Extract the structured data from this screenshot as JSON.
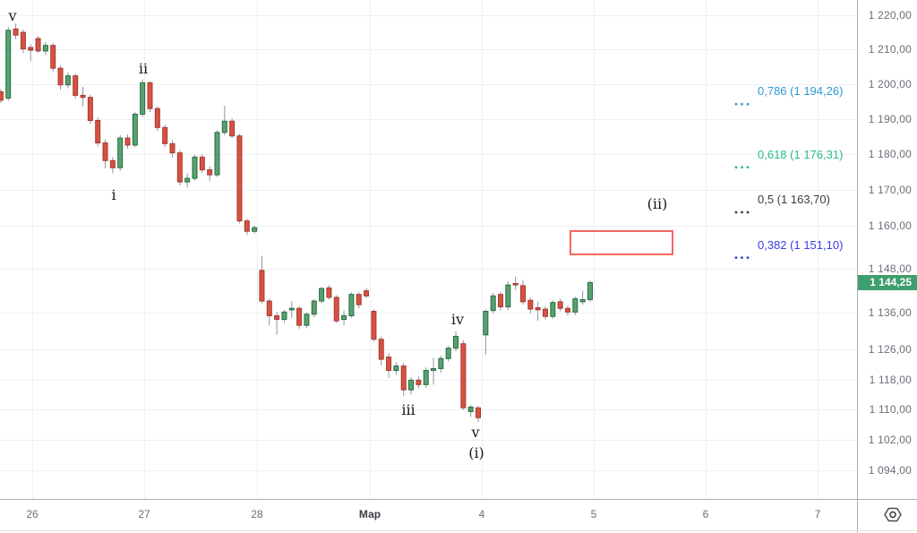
{
  "chart_data": {
    "type": "candlestick",
    "title": "",
    "y_axis": {
      "ticks": [
        {
          "label": "1 220,00",
          "value": 1220
        },
        {
          "label": "1 210,00",
          "value": 1210
        },
        {
          "label": "1 200,00",
          "value": 1200
        },
        {
          "label": "1 190,00",
          "value": 1190
        },
        {
          "label": "1 180,00",
          "value": 1180
        },
        {
          "label": "1 170,00",
          "value": 1170
        },
        {
          "label": "1 160,00",
          "value": 1160
        },
        {
          "label": "1 148,00",
          "value": 1148
        },
        {
          "label": "1 136,00",
          "value": 1136
        },
        {
          "label": "1 126,00",
          "value": 1126
        },
        {
          "label": "1 118,00",
          "value": 1118
        },
        {
          "label": "1 110,00",
          "value": 1110
        },
        {
          "label": "1 102,00",
          "value": 1102
        },
        {
          "label": "1 094,00",
          "value": 1094
        }
      ],
      "last_price": "1 144,25",
      "last_price_value": 1144.25
    },
    "x_axis": {
      "labels": [
        "26",
        "27",
        "28",
        "Мар",
        "4",
        "5",
        "6",
        "7"
      ],
      "emphasis": "Мар"
    },
    "fib_levels": [
      {
        "ratio": "0,786",
        "price": "1 194,26",
        "value": 1194.26,
        "label": "0,786 (1 194,26)",
        "color": "#2e9ad2"
      },
      {
        "ratio": "0,618",
        "price": "1 176,31",
        "value": 1176.31,
        "label": "0,618 (1 176,31)",
        "color": "#2abb85"
      },
      {
        "ratio": "0,5",
        "price": "1 163,70",
        "value": 1163.7,
        "label": "0,5 (1 163,70)",
        "color": "#3a3d44"
      },
      {
        "ratio": "0,382",
        "price": "1 151,10",
        "value": 1151.1,
        "label": "0,382 (1 151,10)",
        "color": "#3c3cdb"
      }
    ],
    "wave_labels": [
      "v",
      "ii",
      "i",
      "iii",
      "iv",
      "v",
      "(i)",
      "(ii)"
    ],
    "colors": {
      "up_fill": "#57a26f",
      "up_border": "#266b44",
      "down_fill": "#d85140",
      "down_border": "#a43b31",
      "wick": "#919498",
      "grid": "#eef0f4",
      "axis_line": "#a9adb5",
      "badge_bg": "#3d9e6e",
      "rectangle_border": "#f4675f"
    },
    "candles": [
      [
        1197.8,
        1198.6,
        1194.6,
        1195.4
      ],
      [
        1196.0,
        1216.6,
        1195.2,
        1215.6
      ],
      [
        1216.0,
        1217.6,
        1213.0,
        1214.2
      ],
      [
        1215.0,
        1215.8,
        1209.0,
        1210.2
      ],
      [
        1210.6,
        1211.6,
        1206.6,
        1209.8
      ],
      [
        1213.2,
        1214.0,
        1209.0,
        1209.6
      ],
      [
        1209.6,
        1212.2,
        1208.4,
        1211.2
      ],
      [
        1211.2,
        1211.8,
        1203.6,
        1204.6
      ],
      [
        1204.6,
        1205.4,
        1198.4,
        1199.8
      ],
      [
        1199.8,
        1203.4,
        1198.8,
        1202.4
      ],
      [
        1202.4,
        1203.0,
        1195.8,
        1196.8
      ],
      [
        1196.8,
        1199.2,
        1193.6,
        1196.2
      ],
      [
        1196.2,
        1197.0,
        1188.6,
        1189.6
      ],
      [
        1189.6,
        1190.4,
        1182.2,
        1183.2
      ],
      [
        1183.2,
        1184.2,
        1176.0,
        1178.2
      ],
      [
        1178.2,
        1179.2,
        1174.6,
        1176.2
      ],
      [
        1176.2,
        1185.4,
        1175.2,
        1184.6
      ],
      [
        1184.6,
        1185.6,
        1181.6,
        1182.6
      ],
      [
        1182.6,
        1192.0,
        1182.0,
        1191.4
      ],
      [
        1191.4,
        1201.4,
        1190.6,
        1200.4
      ],
      [
        1200.4,
        1200.9,
        1192.0,
        1193.0
      ],
      [
        1193.0,
        1193.6,
        1186.6,
        1187.6
      ],
      [
        1187.6,
        1188.4,
        1182.0,
        1183.0
      ],
      [
        1183.0,
        1184.0,
        1179.2,
        1180.4
      ],
      [
        1180.4,
        1181.2,
        1171.2,
        1172.2
      ],
      [
        1172.2,
        1174.6,
        1170.6,
        1173.2
      ],
      [
        1173.2,
        1179.8,
        1172.6,
        1179.2
      ],
      [
        1179.2,
        1180.0,
        1174.8,
        1175.6
      ],
      [
        1175.6,
        1176.6,
        1172.4,
        1174.2
      ],
      [
        1174.2,
        1186.8,
        1173.6,
        1186.2
      ],
      [
        1186.2,
        1193.8,
        1185.4,
        1189.4
      ],
      [
        1189.4,
        1190.2,
        1184.6,
        1185.2
      ],
      [
        1185.2,
        1185.8,
        1160.6,
        1161.3
      ],
      [
        1161.3,
        1162.0,
        1157.4,
        1158.4
      ],
      [
        1158.4,
        1160.0,
        1157.8,
        1159.4
      ],
      [
        1147.6,
        1151.6,
        1138.6,
        1139.2
      ],
      [
        1139.2,
        1139.8,
        1132.6,
        1135.2
      ],
      [
        1135.2,
        1136.2,
        1130.0,
        1134.2
      ],
      [
        1134.2,
        1136.8,
        1133.2,
        1136.2
      ],
      [
        1136.8,
        1139.2,
        1134.6,
        1137.2
      ],
      [
        1137.2,
        1137.8,
        1131.6,
        1132.6
      ],
      [
        1132.6,
        1136.2,
        1131.8,
        1135.6
      ],
      [
        1135.6,
        1139.8,
        1134.8,
        1139.2
      ],
      [
        1139.2,
        1143.2,
        1138.6,
        1142.6
      ],
      [
        1142.8,
        1143.6,
        1139.6,
        1140.2
      ],
      [
        1140.2,
        1140.8,
        1133.2,
        1133.8
      ],
      [
        1134.2,
        1136.6,
        1132.6,
        1135.2
      ],
      [
        1135.2,
        1141.6,
        1134.6,
        1141.0
      ],
      [
        1141.0,
        1141.6,
        1137.2,
        1138.2
      ],
      [
        1142.0,
        1142.8,
        1140.0,
        1140.6
      ],
      [
        1136.4,
        1136.9,
        1128.2,
        1128.8
      ],
      [
        1128.8,
        1129.6,
        1121.8,
        1123.4
      ],
      [
        1124.0,
        1125.0,
        1118.4,
        1120.4
      ],
      [
        1120.4,
        1122.6,
        1119.2,
        1121.6
      ],
      [
        1121.6,
        1122.4,
        1113.6,
        1115.2
      ],
      [
        1115.2,
        1118.6,
        1114.0,
        1117.8
      ],
      [
        1117.8,
        1118.8,
        1115.6,
        1116.6
      ],
      [
        1116.6,
        1121.2,
        1115.8,
        1120.4
      ],
      [
        1120.4,
        1123.8,
        1116.6,
        1120.9
      ],
      [
        1120.9,
        1124.4,
        1119.8,
        1123.6
      ],
      [
        1123.6,
        1127.0,
        1122.8,
        1126.4
      ],
      [
        1126.4,
        1131.0,
        1125.6,
        1129.6
      ],
      [
        1127.6,
        1128.6,
        1109.8,
        1110.4
      ],
      [
        1109.4,
        1111.2,
        1108.0,
        1110.6
      ],
      [
        1110.4,
        1110.9,
        1106.6,
        1107.8
      ],
      [
        1130.0,
        1136.9,
        1124.6,
        1136.4
      ],
      [
        1136.6,
        1141.4,
        1135.8,
        1140.6
      ],
      [
        1141.0,
        1141.8,
        1136.6,
        1137.6
      ],
      [
        1137.6,
        1144.6,
        1136.8,
        1143.6
      ],
      [
        1144.0,
        1145.9,
        1142.2,
        1143.6
      ],
      [
        1143.4,
        1145.0,
        1138.2,
        1139.0
      ],
      [
        1139.4,
        1140.2,
        1135.8,
        1137.0
      ],
      [
        1137.4,
        1139.0,
        1133.8,
        1136.8
      ],
      [
        1137.0,
        1137.8,
        1134.2,
        1135.0
      ],
      [
        1135.0,
        1139.4,
        1134.4,
        1138.8
      ],
      [
        1139.0,
        1139.8,
        1136.4,
        1137.2
      ],
      [
        1137.2,
        1138.0,
        1135.2,
        1136.2
      ],
      [
        1136.2,
        1140.4,
        1135.4,
        1139.8
      ],
      [
        1139.0,
        1142.0,
        1138.2,
        1139.6
      ],
      [
        1139.6,
        1144.8,
        1139.0,
        1144.25
      ]
    ]
  }
}
